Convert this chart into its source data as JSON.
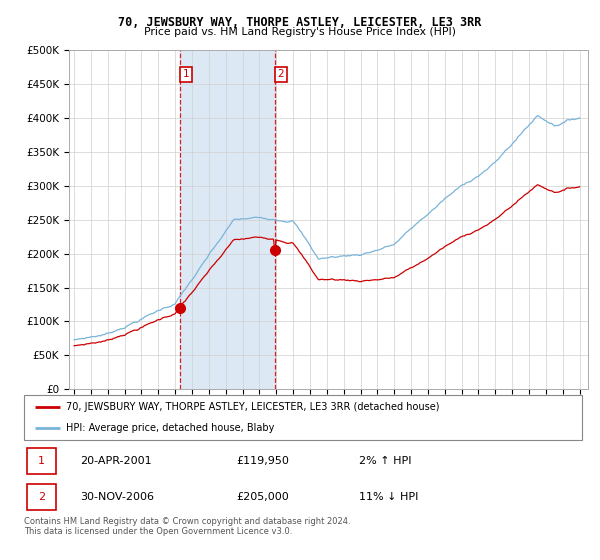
{
  "title": "70, JEWSBURY WAY, THORPE ASTLEY, LEICESTER, LE3 3RR",
  "subtitle": "Price paid vs. HM Land Registry's House Price Index (HPI)",
  "legend_line1": "70, JEWSBURY WAY, THORPE ASTLEY, LEICESTER, LE3 3RR (detached house)",
  "legend_line2": "HPI: Average price, detached house, Blaby",
  "ann1_date": "20-APR-2001",
  "ann1_price": "£119,950",
  "ann1_pct": "2% ↑ HPI",
  "ann2_date": "30-NOV-2006",
  "ann2_price": "£205,000",
  "ann2_pct": "11% ↓ HPI",
  "footer": "Contains HM Land Registry data © Crown copyright and database right 2024.\nThis data is licensed under the Open Government Licence v3.0.",
  "hpi_color": "#7ab4d8",
  "sale_color": "#cc0000",
  "bg_highlight": "#dce9f5",
  "ylim": [
    0,
    500000
  ],
  "ytick_vals": [
    0,
    50000,
    100000,
    150000,
    200000,
    250000,
    300000,
    350000,
    400000,
    450000,
    500000
  ],
  "ytick_labels": [
    "£0",
    "£50K",
    "£100K",
    "£150K",
    "£200K",
    "£250K",
    "£300K",
    "£350K",
    "£400K",
    "£450K",
    "£500K"
  ],
  "xlim_left": 1994.7,
  "xlim_right": 2025.5,
  "sale1_x": 2001.29,
  "sale1_y": 119950,
  "sale2_x": 2006.92,
  "sale2_y": 205000
}
